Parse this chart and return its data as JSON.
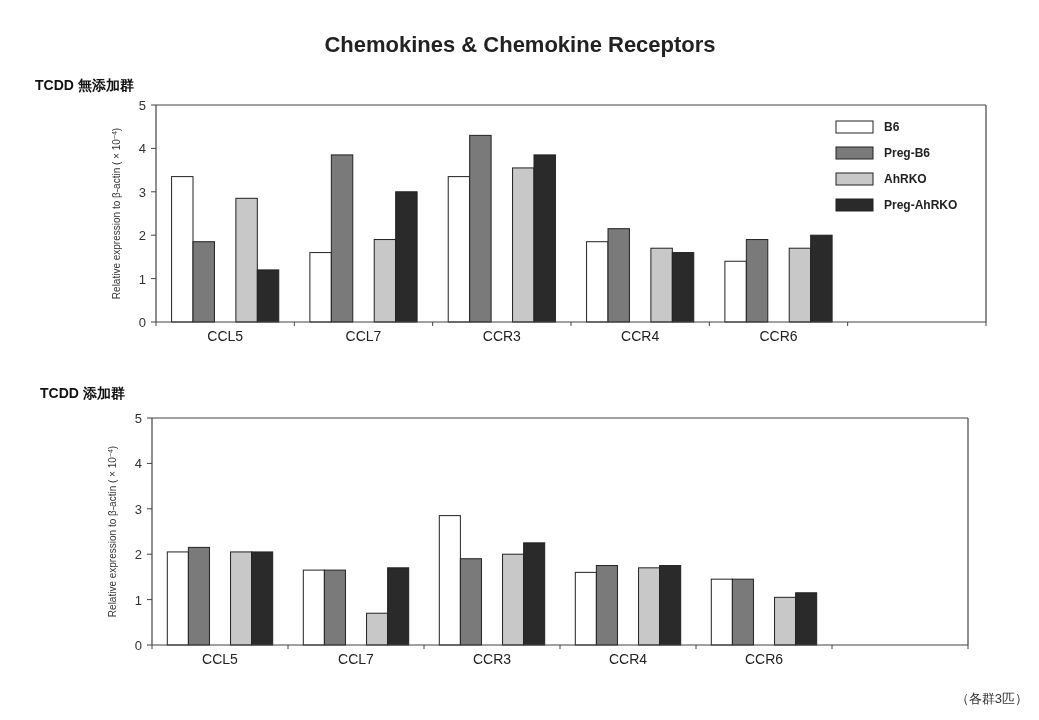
{
  "chart_data": [
    {
      "type": "bar",
      "title": "Chemokines & Chemokine Receptors",
      "subtitle": "TCDD 無添加群",
      "ylabel": "Relative expression to β-actin ( × 10$^{−4}$)",
      "categories": [
        "CCL5",
        "CCL7",
        "CCR3",
        "CCR4",
        "CCR6",
        null
      ],
      "series": [
        {
          "name": "B6",
          "color": "#ffffff",
          "values": [
            3.35,
            1.6,
            3.35,
            1.85,
            1.4,
            null
          ]
        },
        {
          "name": "Preg-B6",
          "color": "#7a7a7a",
          "values": [
            1.85,
            3.85,
            4.3,
            2.15,
            1.9,
            null
          ]
        },
        {
          "name": "AhRKO",
          "color": "#c8c8c8",
          "values": [
            2.85,
            1.9,
            3.55,
            1.7,
            1.7,
            null
          ]
        },
        {
          "name": "Preg-AhRKO",
          "color": "#2a2a2a",
          "values": [
            1.2,
            3.0,
            3.85,
            1.6,
            2.0,
            null
          ]
        }
      ],
      "ylim": [
        0,
        5
      ],
      "yticks": [
        0,
        1,
        2,
        3,
        4,
        5
      ],
      "grid": false,
      "legend": "top right"
    },
    {
      "type": "bar",
      "subtitle": "TCDD 添加群",
      "ylabel": "Relative expression to β-actin ( × 10$^{−4}$)",
      "categories": [
        "CCL5",
        "CCL7",
        "CCR3",
        "CCR4",
        "CCR6",
        null
      ],
      "series": [
        {
          "color": "#ffffff",
          "values": [
            2.05,
            1.65,
            2.85,
            1.6,
            1.45,
            null
          ]
        },
        {
          "color": "#7a7a7a",
          "values": [
            2.15,
            1.65,
            1.9,
            1.75,
            1.45,
            null
          ]
        },
        {
          "color": "#c8c8c8",
          "values": [
            2.05,
            0.7,
            2.0,
            1.7,
            1.05,
            null
          ]
        },
        {
          "color": "#2a2a2a",
          "values": [
            2.05,
            1.7,
            2.25,
            1.75,
            1.15,
            null
          ]
        }
      ],
      "ylim": [
        0,
        5
      ],
      "yticks": [
        0,
        1,
        2,
        3,
        4,
        5
      ],
      "grid": false,
      "legend": false,
      "annotations": [
        "（各群3匹）"
      ]
    }
  ]
}
